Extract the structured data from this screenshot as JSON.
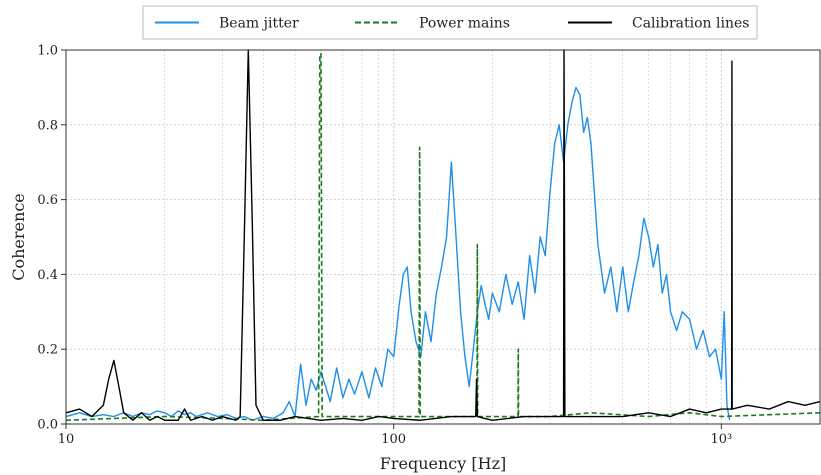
{
  "chart_data": {
    "type": "line",
    "xlabel": "Frequency [Hz]",
    "ylabel": "Coherence",
    "x_scale": "log",
    "xlim": [
      10,
      2000
    ],
    "ylim": [
      0,
      1.0
    ],
    "x_ticks": [
      {
        "value": 10,
        "label": "10"
      },
      {
        "value": 100,
        "label": "100"
      },
      {
        "value": 1000,
        "label": "10³"
      }
    ],
    "y_ticks": [
      {
        "value": 0.0,
        "label": "0.0"
      },
      {
        "value": 0.2,
        "label": "0.2"
      },
      {
        "value": 0.4,
        "label": "0.4"
      },
      {
        "value": 0.6,
        "label": "0.6"
      },
      {
        "value": 0.8,
        "label": "0.8"
      },
      {
        "value": 1.0,
        "label": "1.0"
      }
    ],
    "grid": true,
    "legend_position": "top-center",
    "series": [
      {
        "name": "Beam jitter",
        "color": "#1f8fe8",
        "style": "solid",
        "points": [
          [
            10,
            0.02
          ],
          [
            11,
            0.03
          ],
          [
            12,
            0.02
          ],
          [
            13,
            0.025
          ],
          [
            14,
            0.02
          ],
          [
            15,
            0.03
          ],
          [
            16,
            0.02
          ],
          [
            17,
            0.03
          ],
          [
            18,
            0.025
          ],
          [
            19,
            0.035
          ],
          [
            20,
            0.03
          ],
          [
            21,
            0.02
          ],
          [
            22,
            0.035
          ],
          [
            23,
            0.025
          ],
          [
            24,
            0.03
          ],
          [
            25,
            0.02
          ],
          [
            27,
            0.03
          ],
          [
            29,
            0.02
          ],
          [
            31,
            0.025
          ],
          [
            33,
            0.015
          ],
          [
            35,
            0.02
          ],
          [
            37,
            0.01
          ],
          [
            40,
            0.02
          ],
          [
            43,
            0.015
          ],
          [
            46,
            0.03
          ],
          [
            48,
            0.06
          ],
          [
            50,
            0.02
          ],
          [
            52,
            0.16
          ],
          [
            54,
            0.05
          ],
          [
            56,
            0.12
          ],
          [
            58,
            0.09
          ],
          [
            60,
            0.14
          ],
          [
            62,
            0.1
          ],
          [
            64,
            0.06
          ],
          [
            67,
            0.15
          ],
          [
            70,
            0.07
          ],
          [
            73,
            0.12
          ],
          [
            76,
            0.08
          ],
          [
            80,
            0.14
          ],
          [
            84,
            0.07
          ],
          [
            88,
            0.15
          ],
          [
            92,
            0.1
          ],
          [
            96,
            0.2
          ],
          [
            100,
            0.18
          ],
          [
            104,
            0.32
          ],
          [
            107,
            0.4
          ],
          [
            110,
            0.42
          ],
          [
            113,
            0.3
          ],
          [
            117,
            0.22
          ],
          [
            121,
            0.18
          ],
          [
            125,
            0.3
          ],
          [
            130,
            0.22
          ],
          [
            135,
            0.35
          ],
          [
            140,
            0.42
          ],
          [
            145,
            0.5
          ],
          [
            150,
            0.7
          ],
          [
            155,
            0.5
          ],
          [
            160,
            0.3
          ],
          [
            165,
            0.18
          ],
          [
            170,
            0.1
          ],
          [
            175,
            0.2
          ],
          [
            180,
            0.3
          ],
          [
            185,
            0.37
          ],
          [
            190,
            0.32
          ],
          [
            195,
            0.28
          ],
          [
            200,
            0.35
          ],
          [
            210,
            0.3
          ],
          [
            220,
            0.4
          ],
          [
            230,
            0.32
          ],
          [
            240,
            0.38
          ],
          [
            250,
            0.28
          ],
          [
            260,
            0.45
          ],
          [
            270,
            0.35
          ],
          [
            280,
            0.5
          ],
          [
            290,
            0.45
          ],
          [
            300,
            0.62
          ],
          [
            310,
            0.75
          ],
          [
            320,
            0.8
          ],
          [
            330,
            0.7
          ],
          [
            340,
            0.8
          ],
          [
            350,
            0.86
          ],
          [
            360,
            0.9
          ],
          [
            370,
            0.88
          ],
          [
            380,
            0.78
          ],
          [
            390,
            0.82
          ],
          [
            400,
            0.75
          ],
          [
            420,
            0.48
          ],
          [
            440,
            0.35
          ],
          [
            460,
            0.42
          ],
          [
            480,
            0.3
          ],
          [
            500,
            0.42
          ],
          [
            520,
            0.3
          ],
          [
            540,
            0.38
          ],
          [
            560,
            0.45
          ],
          [
            580,
            0.55
          ],
          [
            600,
            0.5
          ],
          [
            620,
            0.42
          ],
          [
            640,
            0.48
          ],
          [
            660,
            0.35
          ],
          [
            680,
            0.4
          ],
          [
            700,
            0.3
          ],
          [
            730,
            0.25
          ],
          [
            760,
            0.3
          ],
          [
            800,
            0.28
          ],
          [
            840,
            0.2
          ],
          [
            880,
            0.25
          ],
          [
            920,
            0.18
          ],
          [
            960,
            0.2
          ],
          [
            1000,
            0.12
          ],
          [
            1020,
            0.3
          ],
          [
            1040,
            0.05
          ],
          [
            1060,
            0.01
          ]
        ]
      },
      {
        "name": "Power mains",
        "color": "#1a7a1a",
        "style": "dashed",
        "points": [
          [
            10,
            0.01
          ],
          [
            20,
            0.02
          ],
          [
            30,
            0.015
          ],
          [
            40,
            0.01
          ],
          [
            59,
            0.02
          ],
          [
            59.5,
            0.99
          ],
          [
            60,
            0.99
          ],
          [
            60.5,
            0.02
          ],
          [
            100,
            0.02
          ],
          [
            119.5,
            0.02
          ],
          [
            120,
            0.74
          ],
          [
            120.5,
            0.02
          ],
          [
            179.5,
            0.02
          ],
          [
            180,
            0.48
          ],
          [
            180.5,
            0.02
          ],
          [
            239.5,
            0.02
          ],
          [
            240,
            0.2
          ],
          [
            240.5,
            0.02
          ],
          [
            300,
            0.02
          ],
          [
            400,
            0.03
          ],
          [
            600,
            0.02
          ],
          [
            800,
            0.03
          ],
          [
            1000,
            0.02
          ],
          [
            2000,
            0.03
          ]
        ]
      },
      {
        "name": "Calibration lines",
        "color": "#000000",
        "style": "solid",
        "points": [
          [
            10,
            0.03
          ],
          [
            11,
            0.04
          ],
          [
            12,
            0.02
          ],
          [
            13,
            0.05
          ],
          [
            13.5,
            0.12
          ],
          [
            14,
            0.17
          ],
          [
            14.5,
            0.1
          ],
          [
            15,
            0.03
          ],
          [
            16,
            0.01
          ],
          [
            17,
            0.03
          ],
          [
            18,
            0.01
          ],
          [
            19,
            0.02
          ],
          [
            20,
            0.01
          ],
          [
            22,
            0.01
          ],
          [
            23,
            0.04
          ],
          [
            24,
            0.01
          ],
          [
            26,
            0.02
          ],
          [
            28,
            0.01
          ],
          [
            30,
            0.02
          ],
          [
            33,
            0.01
          ],
          [
            34,
            0.02
          ],
          [
            35,
            0.5
          ],
          [
            36,
            1.0
          ],
          [
            37,
            0.55
          ],
          [
            38,
            0.05
          ],
          [
            40,
            0.01
          ],
          [
            45,
            0.01
          ],
          [
            50,
            0.02
          ],
          [
            60,
            0.01
          ],
          [
            70,
            0.015
          ],
          [
            80,
            0.01
          ],
          [
            90,
            0.02
          ],
          [
            100,
            0.015
          ],
          [
            120,
            0.01
          ],
          [
            150,
            0.02
          ],
          [
            178,
            0.02
          ],
          [
            179,
            0.12
          ],
          [
            180,
            0.02
          ],
          [
            200,
            0.01
          ],
          [
            250,
            0.02
          ],
          [
            300,
            0.02
          ],
          [
            330,
            0.02
          ],
          [
            331,
            1.0
          ],
          [
            332,
            0.6
          ],
          [
            333,
            0.02
          ],
          [
            400,
            0.02
          ],
          [
            500,
            0.02
          ],
          [
            600,
            0.03
          ],
          [
            700,
            0.02
          ],
          [
            800,
            0.04
          ],
          [
            900,
            0.03
          ],
          [
            1000,
            0.04
          ],
          [
            1075,
            0.04
          ],
          [
            1077,
            0.97
          ],
          [
            1079,
            0.04
          ],
          [
            1200,
            0.05
          ],
          [
            1400,
            0.04
          ],
          [
            1600,
            0.06
          ],
          [
            1800,
            0.05
          ],
          [
            2000,
            0.06
          ]
        ]
      }
    ]
  }
}
